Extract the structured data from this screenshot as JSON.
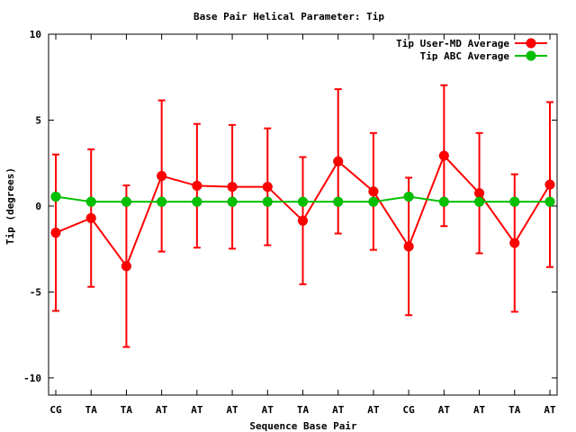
{
  "chart_data": {
    "type": "line",
    "title": "Base Pair Helical Parameter: Tip",
    "xlabel": "Sequence Base Pair",
    "ylabel": "Tip (degrees)",
    "categories": [
      "CG",
      "TA",
      "TA",
      "AT",
      "AT",
      "AT",
      "AT",
      "TA",
      "AT",
      "AT",
      "CG",
      "AT",
      "AT",
      "TA",
      "AT"
    ],
    "ylim": [
      -11,
      10
    ],
    "yticks": [
      -10,
      -5,
      0,
      5,
      10
    ],
    "ytick_labels": [
      "-10",
      "-5",
      "0",
      "5",
      "10"
    ],
    "grid": false,
    "legend_position": "top-right",
    "series": [
      {
        "name": "Tip User-MD Average",
        "color": "#ff0000",
        "marker_color": "#ff0000",
        "values": [
          -1.55,
          -0.7,
          -3.5,
          1.75,
          1.18,
          1.12,
          1.12,
          -0.85,
          2.6,
          0.85,
          -2.35,
          2.93,
          0.75,
          -2.15,
          1.25
        ],
        "errors": [
          4.55,
          4.0,
          4.7,
          4.4,
          3.6,
          3.6,
          3.4,
          3.7,
          4.2,
          3.4,
          4.0,
          4.1,
          3.5,
          4.0,
          4.8
        ]
      },
      {
        "name": "Tip ABC Average",
        "color": "#00c000",
        "marker_color": "#00c000",
        "values": [
          0.55,
          0.25,
          0.25,
          0.25,
          0.25,
          0.25,
          0.25,
          0.25,
          0.25,
          0.25,
          0.55,
          0.25,
          0.25,
          0.25,
          0.25
        ]
      }
    ]
  }
}
